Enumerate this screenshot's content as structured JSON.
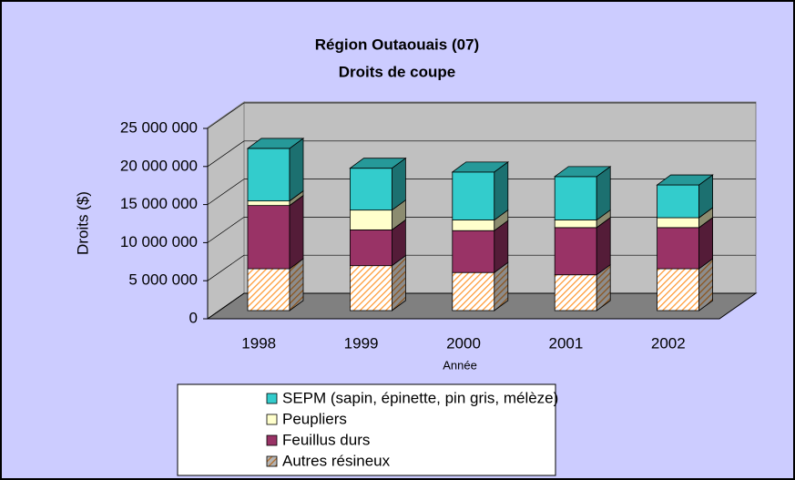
{
  "chart_data": {
    "type": "bar3d_stacked",
    "title": [
      "Région Outaouais (07)",
      "Droits de coupe"
    ],
    "x_label": "Année",
    "y_label": "Droits ($)",
    "categories": [
      "1998",
      "1999",
      "2000",
      "2001",
      "2002"
    ],
    "series": [
      {
        "name": "Autres résineux",
        "color": "#ff9933",
        "hatch": true,
        "values": [
          5500000,
          5900000,
          5000000,
          4700000,
          5500000
        ]
      },
      {
        "name": "Feuillus durs",
        "color": "#993366",
        "values": [
          8300000,
          4700000,
          5500000,
          6200000,
          5400000
        ]
      },
      {
        "name": "Peupliers",
        "color": "#ffffcc",
        "values": [
          600000,
          2600000,
          1400000,
          1000000,
          1300000
        ]
      },
      {
        "name": "SEPM (sapin, épinette, pin gris, mélèze)",
        "color": "#33cccc",
        "values": [
          6900000,
          5500000,
          6300000,
          5700000,
          4300000
        ]
      }
    ],
    "ylim": [
      0,
      25000000
    ],
    "yticks": [
      {
        "value": 0,
        "label": "0"
      },
      {
        "value": 5000000,
        "label": "5 000 000"
      },
      {
        "value": 10000000,
        "label": "10 000 000"
      },
      {
        "value": 15000000,
        "label": "15 000 000"
      },
      {
        "value": 20000000,
        "label": "20 000 000"
      },
      {
        "value": 25000000,
        "label": "25 000 000"
      }
    ],
    "grid": true
  }
}
